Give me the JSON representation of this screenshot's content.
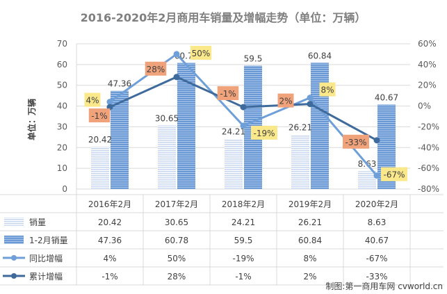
{
  "chart_data": {
    "type": "bar",
    "title": "2016-2020年2月商用车销量及增幅走势（单位：万辆）",
    "ylabel": "单位：万辆",
    "categories": [
      "2016年2月",
      "2017年2月",
      "2018年2月",
      "2019年2月",
      "2020年2月"
    ],
    "ylim": [
      0,
      70
    ],
    "yticks": [
      0,
      10,
      20,
      30,
      40,
      50,
      60,
      70
    ],
    "y2lim": [
      -80,
      60
    ],
    "y2ticks": [
      "60%",
      "40%",
      "20%",
      "0%",
      "-20%",
      "-40%",
      "-60%",
      "-80%"
    ],
    "y2tick_values": [
      60,
      40,
      20,
      0,
      -20,
      -40,
      -60,
      -80
    ],
    "grid": true,
    "legend_placement": "bottom data table",
    "series": [
      {
        "name": "销量",
        "type": "bar",
        "axis": "left",
        "values": [
          20.42,
          30.65,
          24.21,
          26.21,
          8.63
        ],
        "labels": [
          "20.42",
          "30.65",
          "24.21",
          "26.21",
          "8.63"
        ]
      },
      {
        "name": "1-2月销量",
        "type": "bar",
        "axis": "left",
        "values": [
          47.36,
          60.78,
          59.5,
          60.84,
          40.67
        ],
        "labels": [
          "47.36",
          "60.78",
          "59.5",
          "60.84",
          "40.67"
        ]
      },
      {
        "name": "同比增幅",
        "type": "line",
        "axis": "right",
        "values": [
          4,
          50,
          -19,
          8,
          -67
        ],
        "labels": [
          "4%",
          "50%",
          "-19%",
          "8%",
          "-67%"
        ]
      },
      {
        "name": "累计增幅",
        "type": "line",
        "axis": "right",
        "values": [
          -1,
          28,
          -1,
          2,
          -33
        ],
        "labels": [
          "-1%",
          "28%",
          "-1%",
          "2%",
          "-33%"
        ]
      }
    ],
    "colors": {
      "sales": "#c9d8ef",
      "cumulative_sales": "#5b8fcf",
      "yoy": "#6f9fd8",
      "cumulative_growth": "#3e6a9c",
      "yoy_label_bg": "#fbe88a",
      "cumulative_label_bg": "#f0a27a",
      "grid": "#d9d9d9"
    },
    "source": "制图:第一商用车网 cvworld.cn"
  }
}
